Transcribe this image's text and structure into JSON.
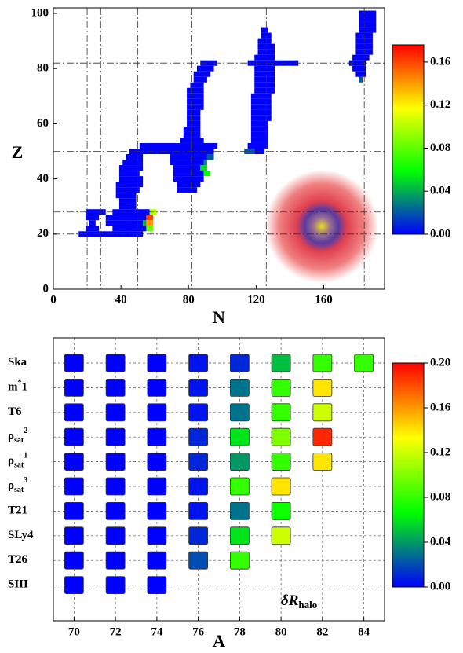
{
  "chart_data": [
    {
      "type": "heatmap",
      "xlabel": "N",
      "ylabel": "Z",
      "xlim": [
        0,
        196
      ],
      "ylim": [
        0,
        102
      ],
      "xticks": [
        0,
        40,
        80,
        120,
        160
      ],
      "yticks": [
        0,
        20,
        40,
        60,
        80,
        100
      ],
      "magic_lines": {
        "n": [
          20,
          28,
          50,
          82,
          126,
          184
        ],
        "z": [
          20,
          28,
          50,
          82
        ]
      },
      "colors": [
        "#0000ff",
        "#00ff00",
        "#ffff00",
        "#ff0000"
      ],
      "clim": [
        0,
        0.176
      ],
      "cticks": [
        {
          "value": 0,
          "label": "0.00"
        },
        {
          "value": 0.04,
          "label": "0.04"
        },
        {
          "value": 0.08,
          "label": "0.08"
        },
        {
          "value": 0.12,
          "label": "0.12"
        },
        {
          "value": 0.16,
          "label": "0.16"
        }
      ],
      "cells": [
        [
          20,
          16,
          52,
          0
        ],
        [
          22,
          20,
          26,
          0
        ],
        [
          22,
          36,
          54,
          0
        ],
        [
          22,
          56,
          58,
          0.08
        ],
        [
          24,
          22,
          24,
          0
        ],
        [
          24,
          32,
          52,
          0
        ],
        [
          24,
          54,
          54,
          0.04
        ],
        [
          24,
          56,
          58,
          0.14
        ],
        [
          26,
          20,
          26,
          0
        ],
        [
          26,
          32,
          54,
          0
        ],
        [
          26,
          56,
          58,
          0.16
        ],
        [
          28,
          20,
          30,
          0
        ],
        [
          28,
          36,
          56,
          0
        ],
        [
          28,
          58,
          60,
          0.1
        ],
        [
          30,
          40,
          48,
          0
        ],
        [
          32,
          40,
          48,
          0
        ],
        [
          34,
          38,
          48,
          0
        ],
        [
          36,
          38,
          50,
          0
        ],
        [
          36,
          74,
          84,
          0
        ],
        [
          38,
          38,
          52,
          0
        ],
        [
          38,
          74,
          86,
          0
        ],
        [
          40,
          40,
          52,
          0
        ],
        [
          40,
          72,
          88,
          0
        ],
        [
          42,
          40,
          50,
          0
        ],
        [
          42,
          72,
          88,
          0
        ],
        [
          42,
          90,
          92,
          0.06
        ],
        [
          44,
          40,
          52,
          0
        ],
        [
          44,
          72,
          86,
          0
        ],
        [
          44,
          88,
          90,
          0.05
        ],
        [
          46,
          42,
          52,
          0
        ],
        [
          46,
          70,
          88,
          0
        ],
        [
          46,
          90,
          90,
          0.03
        ],
        [
          48,
          44,
          52,
          0
        ],
        [
          48,
          70,
          90,
          0
        ],
        [
          48,
          92,
          94,
          0.02
        ],
        [
          50,
          46,
          94,
          0
        ],
        [
          50,
          114,
          118,
          0.02
        ],
        [
          50,
          120,
          124,
          0
        ],
        [
          52,
          52,
          96,
          0
        ],
        [
          52,
          116,
          126,
          0
        ],
        [
          54,
          76,
          88,
          0
        ],
        [
          54,
          118,
          126,
          0
        ],
        [
          56,
          78,
          86,
          0
        ],
        [
          56,
          118,
          126,
          0
        ],
        [
          58,
          78,
          86,
          0
        ],
        [
          58,
          118,
          126,
          0
        ],
        [
          60,
          80,
          86,
          0
        ],
        [
          60,
          118,
          126,
          0
        ],
        [
          62,
          80,
          86,
          0
        ],
        [
          62,
          118,
          128,
          0
        ],
        [
          64,
          80,
          86,
          0
        ],
        [
          64,
          118,
          128,
          0
        ],
        [
          66,
          80,
          88,
          0
        ],
        [
          66,
          118,
          128,
          0
        ],
        [
          68,
          80,
          88,
          0
        ],
        [
          68,
          118,
          128,
          0
        ],
        [
          70,
          80,
          88,
          0
        ],
        [
          70,
          118,
          128,
          0
        ],
        [
          72,
          80,
          88,
          0
        ],
        [
          72,
          120,
          130,
          0
        ],
        [
          74,
          82,
          88,
          0
        ],
        [
          74,
          120,
          130,
          0
        ],
        [
          76,
          84,
          90,
          0
        ],
        [
          76,
          120,
          130,
          0
        ],
        [
          76,
          182,
          182,
          0.02
        ],
        [
          78,
          84,
          92,
          0
        ],
        [
          78,
          120,
          130,
          0
        ],
        [
          78,
          180,
          184,
          0
        ],
        [
          80,
          86,
          94,
          0
        ],
        [
          80,
          120,
          130,
          0
        ],
        [
          80,
          178,
          184,
          0
        ],
        [
          82,
          88,
          96,
          0
        ],
        [
          82,
          116,
          144,
          0
        ],
        [
          82,
          176,
          184,
          0
        ],
        [
          84,
          120,
          130,
          0
        ],
        [
          84,
          178,
          186,
          0
        ],
        [
          86,
          122,
          130,
          0
        ],
        [
          86,
          180,
          188,
          0
        ],
        [
          88,
          122,
          130,
          0
        ],
        [
          88,
          180,
          188,
          0
        ],
        [
          90,
          122,
          128,
          0
        ],
        [
          90,
          180,
          188,
          0
        ],
        [
          92,
          124,
          128,
          0
        ],
        [
          92,
          180,
          188,
          0
        ],
        [
          94,
          124,
          126,
          0
        ],
        [
          94,
          182,
          190,
          0
        ],
        [
          96,
          182,
          190,
          0
        ],
        [
          98,
          182,
          190,
          0
        ],
        [
          100,
          182,
          190,
          0
        ]
      ]
    },
    {
      "type": "grid",
      "xlabel": "A",
      "annotation": {
        "text": "δR",
        "sub": "halo"
      },
      "xlim": [
        69,
        85
      ],
      "xticks": [
        70,
        72,
        74,
        76,
        78,
        80,
        82,
        84
      ],
      "x": [
        70,
        72,
        74,
        76,
        78,
        80,
        82,
        84
      ],
      "categories": [
        {
          "text": "Ska"
        },
        {
          "text": "m",
          "sup": "*",
          "after": "1"
        },
        {
          "text": "T6"
        },
        {
          "text": "ρ",
          "sub": "sat",
          "sup": "2"
        },
        {
          "text": "ρ",
          "sub": "sat",
          "sup": "1"
        },
        {
          "text": "ρ",
          "sub": "sat",
          "sup": "3"
        },
        {
          "text": "T21"
        },
        {
          "text": "SLy4"
        },
        {
          "text": "T26"
        },
        {
          "text": "SIII"
        }
      ],
      "colors": [
        "#0000ff",
        "#00ff00",
        "#ffff00",
        "#ff0000"
      ],
      "clim": [
        0,
        0.2
      ],
      "cticks": [
        {
          "value": 0,
          "label": "0.00"
        },
        {
          "value": 0.04,
          "label": "0.04"
        },
        {
          "value": 0.08,
          "label": "0.08"
        },
        {
          "value": 0.12,
          "label": "0.12"
        },
        {
          "value": 0.16,
          "label": "0.16"
        },
        {
          "value": 0.2,
          "label": "0.20"
        }
      ],
      "values": [
        [
          0,
          0,
          0,
          0.005,
          0.01,
          0.05,
          0.08,
          0.08
        ],
        [
          0,
          0,
          0,
          0.005,
          0.03,
          0.08,
          0.14,
          null
        ],
        [
          0,
          0,
          0,
          0.005,
          0.03,
          0.08,
          0.12,
          null
        ],
        [
          0,
          0,
          0,
          0.01,
          0.06,
          0.1,
          0.19,
          null
        ],
        [
          0,
          0,
          0,
          0.01,
          0.04,
          0.08,
          0.14,
          null
        ],
        [
          0,
          0,
          0,
          0.005,
          0.08,
          0.14,
          null,
          null
        ],
        [
          0,
          0,
          0,
          0.005,
          0.03,
          0.07,
          null,
          null
        ],
        [
          0,
          0,
          0,
          0.01,
          0.06,
          0.12,
          null,
          null
        ],
        [
          0,
          0,
          0,
          0.02,
          0.08,
          null,
          null,
          null
        ],
        [
          0,
          0,
          0,
          null,
          null,
          null,
          null,
          null
        ]
      ]
    }
  ]
}
